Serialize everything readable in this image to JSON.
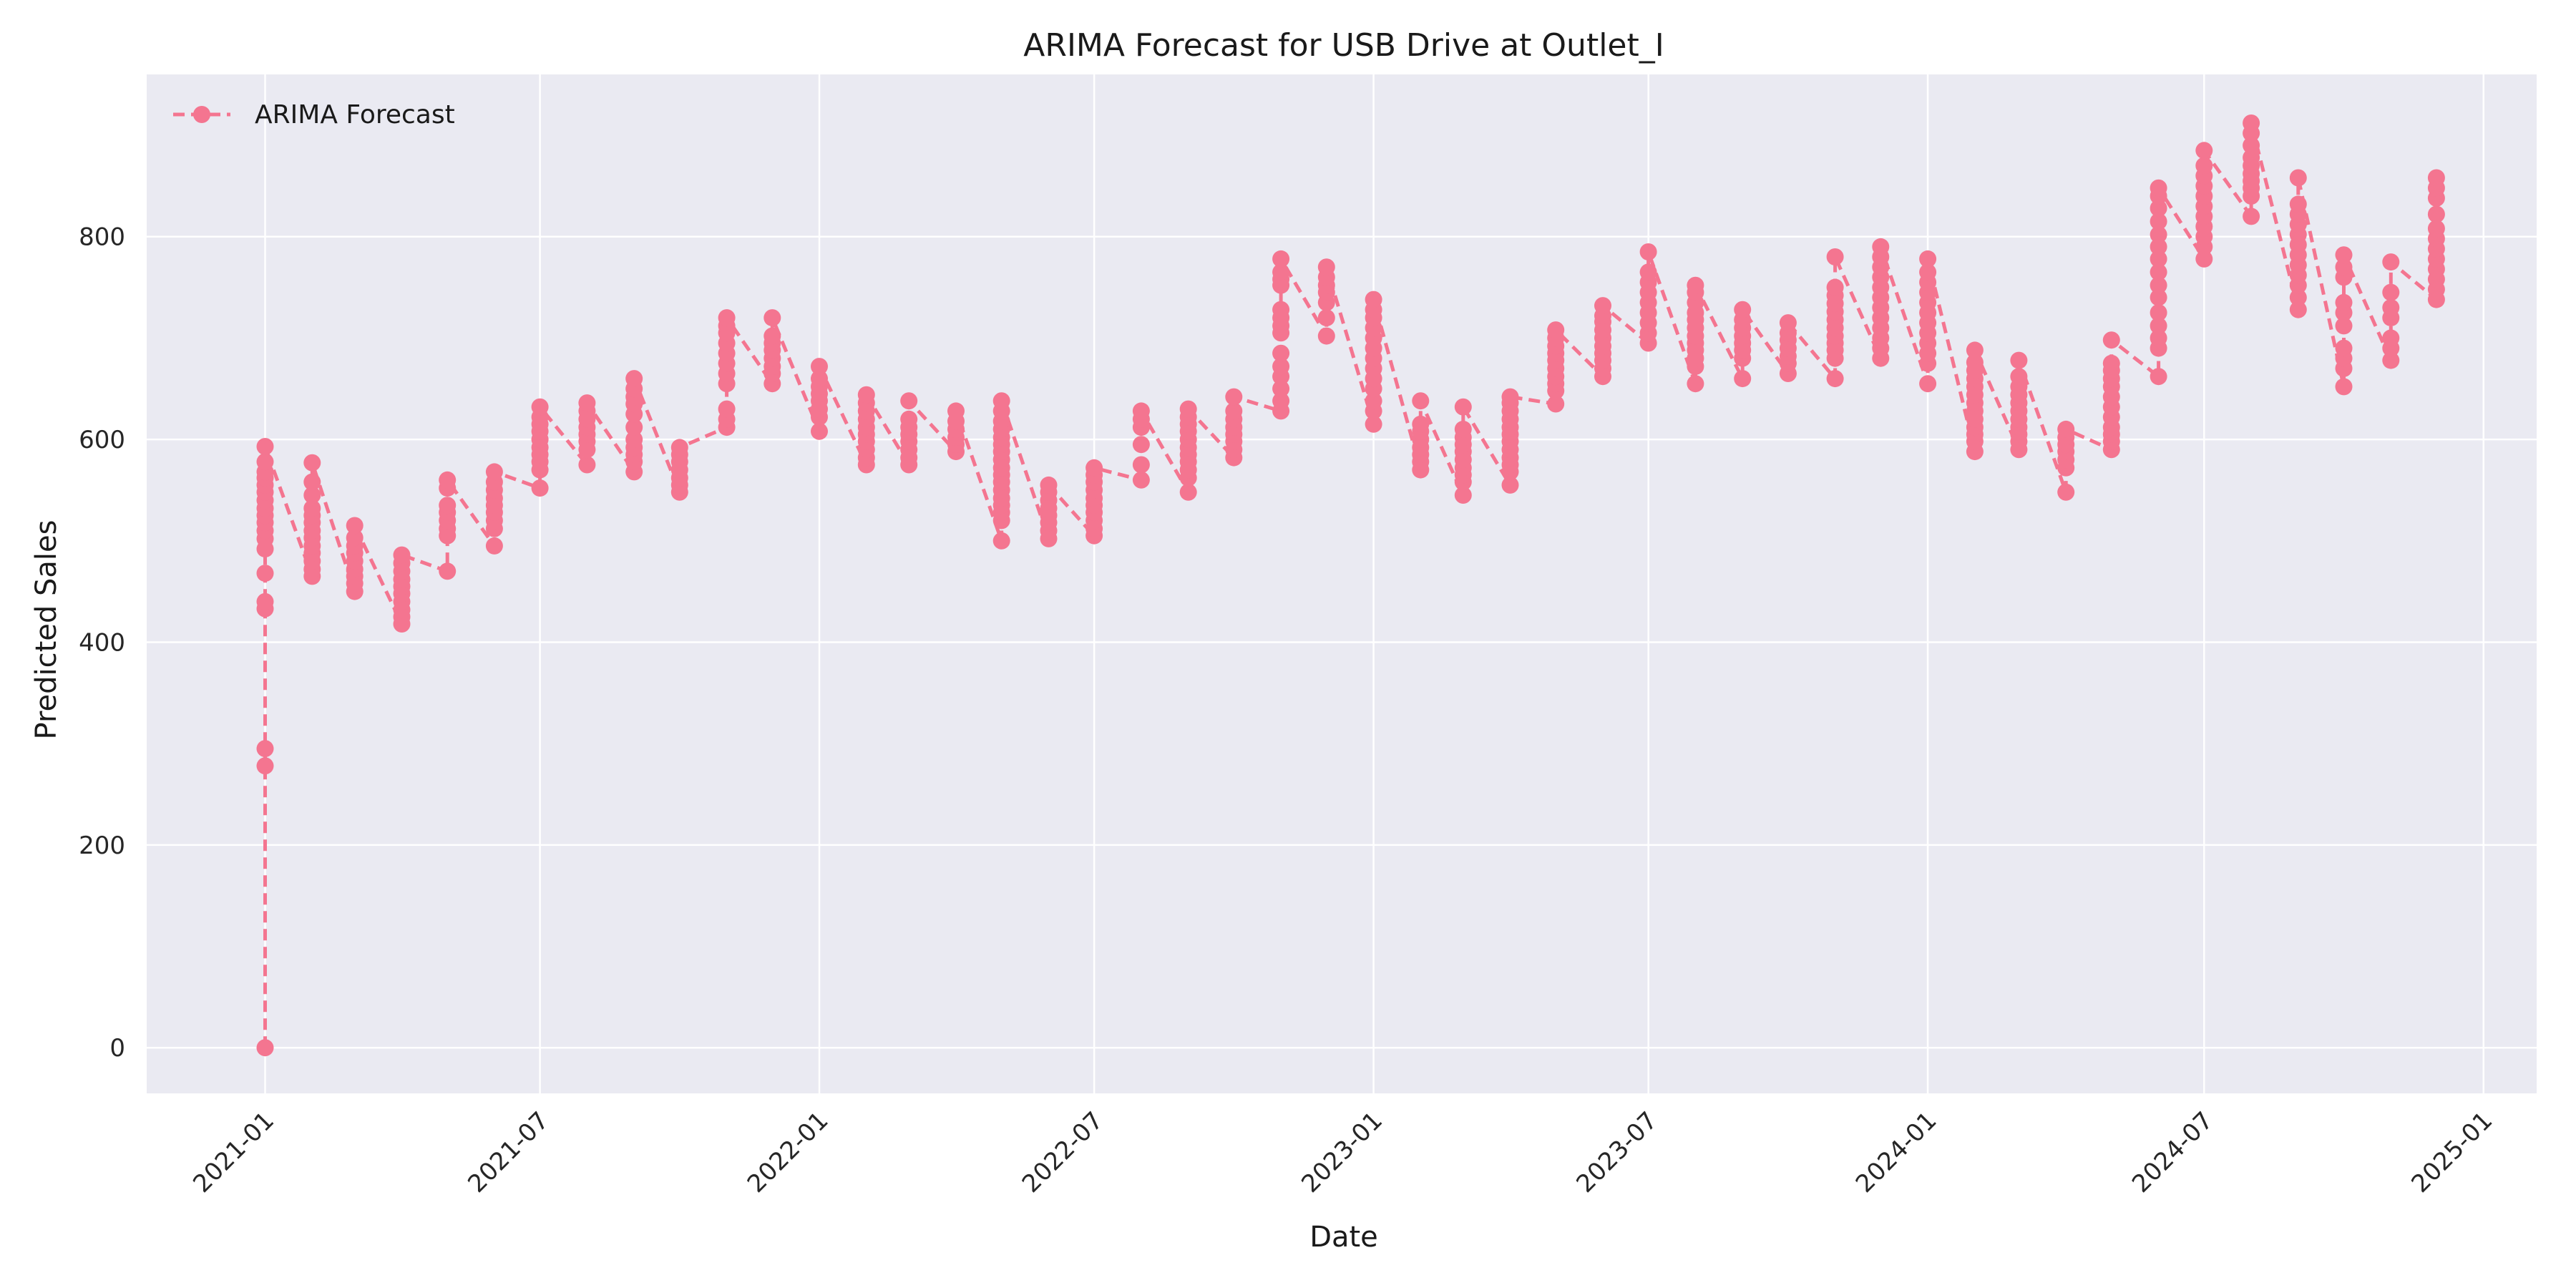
{
  "chart_data": {
    "type": "line",
    "title": "ARIMA Forecast for USB Drive at Outlet_I",
    "xlabel": "Date",
    "ylabel": "Predicted Sales",
    "x_axis_type": "date",
    "xlim": [
      "2020-10-15",
      "2025-02-05"
    ],
    "ylim": [
      -45,
      960
    ],
    "x_ticks": [
      "2021-01",
      "2021-07",
      "2022-01",
      "2022-07",
      "2023-01",
      "2023-07",
      "2024-01",
      "2024-07",
      "2025-01"
    ],
    "x_tick_rotation_deg": 45,
    "y_ticks": [
      0,
      200,
      400,
      600,
      800
    ],
    "grid": true,
    "background": "#EAEAF2",
    "grid_color": "#FFFFFF",
    "legend": {
      "position": "top-left"
    },
    "series": [
      {
        "name": "ARIMA Forecast",
        "color": "#F47590",
        "line_style": "dashed",
        "marker": "circle",
        "points": [
          {
            "x": "2021-01-01",
            "y": [
              0,
              278,
              295,
              433,
              440,
              468,
              492,
              502,
              510,
              518,
              525,
              532,
              540,
              548,
              555,
              562,
              568,
              578,
              593
            ]
          },
          {
            "x": "2021-02-01",
            "y": [
              465,
              472,
              480,
              488,
              495,
              503,
              510,
              518,
              525,
              532,
              545,
              558,
              577
            ]
          },
          {
            "x": "2021-03-01",
            "y": [
              450,
              458,
              465,
              472,
              480,
              488,
              495,
              503,
              515
            ]
          },
          {
            "x": "2021-04-01",
            "y": [
              418,
              425,
              432,
              440,
              448,
              455,
              462,
              470,
              478,
              486
            ]
          },
          {
            "x": "2021-05-01",
            "y": [
              470,
              505,
              512,
              520,
              528,
              535,
              552,
              560
            ]
          },
          {
            "x": "2021-06-01",
            "y": [
              495,
              512,
              520,
              528,
              535,
              542,
              550,
              558,
              568
            ]
          },
          {
            "x": "2021-07-01",
            "y": [
              552,
              570,
              578,
              585,
              592,
              600,
              608,
              615,
              622,
              632
            ]
          },
          {
            "x": "2021-08-01",
            "y": [
              575,
              590,
              598,
              605,
              612,
              620,
              628,
              636
            ]
          },
          {
            "x": "2021-09-01",
            "y": [
              568,
              578,
              585,
              592,
              600,
              612,
              625,
              635,
              642,
              650,
              660
            ]
          },
          {
            "x": "2021-10-01",
            "y": [
              548,
              555,
              562,
              570,
              578,
              585,
              592
            ]
          },
          {
            "x": "2021-11-01",
            "y": [
              612,
              620,
              630,
              655,
              665,
              675,
              685,
              695,
              705,
              712,
              720
            ]
          },
          {
            "x": "2021-12-01",
            "y": [
              655,
              665,
              672,
              680,
              688,
              695,
              702,
              720
            ]
          },
          {
            "x": "2022-01-01",
            "y": [
              608,
              622,
              630,
              638,
              645,
              652,
              660,
              672
            ]
          },
          {
            "x": "2022-02-01",
            "y": [
              575,
              582,
              590,
              598,
              605,
              612,
              620,
              628,
              636,
              644
            ]
          },
          {
            "x": "2022-03-01",
            "y": [
              575,
              582,
              590,
              598,
              605,
              612,
              620,
              638
            ]
          },
          {
            "x": "2022-04-01",
            "y": [
              588,
              595,
              602,
              610,
              618,
              628
            ]
          },
          {
            "x": "2022-05-01",
            "y": [
              500,
              520,
              528,
              535,
              542,
              550,
              558,
              565,
              572,
              580,
              588,
              595,
              602,
              610,
              618,
              628,
              638
            ]
          },
          {
            "x": "2022-06-01",
            "y": [
              502,
              510,
              518,
              525,
              532,
              540,
              548,
              555
            ]
          },
          {
            "x": "2022-07-01",
            "y": [
              505,
              512,
              520,
              528,
              535,
              542,
              550,
              558,
              565,
              572
            ]
          },
          {
            "x": "2022-08-01",
            "y": [
              560,
              575,
              595,
              612,
              620,
              628
            ]
          },
          {
            "x": "2022-09-01",
            "y": [
              548,
              562,
              570,
              578,
              585,
              592,
              600,
              608,
              615,
              622,
              630
            ]
          },
          {
            "x": "2022-10-01",
            "y": [
              582,
              590,
              598,
              605,
              612,
              620,
              628,
              642
            ]
          },
          {
            "x": "2022-11-01",
            "y": [
              628,
              638,
              650,
              662,
              672,
              685,
              705,
              712,
              720,
              728,
              752,
              758,
              765,
              778
            ]
          },
          {
            "x": "2022-12-01",
            "y": [
              702,
              720,
              735,
              745,
              752,
              760,
              770
            ]
          },
          {
            "x": "2023-01-01",
            "y": [
              615,
              628,
              638,
              650,
              660,
              670,
              680,
              690,
              700,
              710,
              720,
              728,
              738
            ]
          },
          {
            "x": "2023-02-01",
            "y": [
              570,
              578,
              585,
              592,
              600,
              608,
              615,
              638
            ]
          },
          {
            "x": "2023-03-01",
            "y": [
              545,
              558,
              565,
              572,
              580,
              588,
              595,
              602,
              610,
              632
            ]
          },
          {
            "x": "2023-04-01",
            "y": [
              555,
              568,
              575,
              582,
              590,
              598,
              605,
              612,
              620,
              628,
              636,
              642
            ]
          },
          {
            "x": "2023-05-01",
            "y": [
              635,
              648,
              655,
              662,
              670,
              678,
              685,
              692,
              700,
              708
            ]
          },
          {
            "x": "2023-06-01",
            "y": [
              662,
              670,
              678,
              685,
              692,
              700,
              708,
              716,
              722,
              732
            ]
          },
          {
            "x": "2023-07-01",
            "y": [
              695,
              705,
              715,
              725,
              735,
              745,
              755,
              765,
              785
            ]
          },
          {
            "x": "2023-08-01",
            "y": [
              655,
              672,
              680,
              688,
              695,
              702,
              710,
              718,
              725,
              735,
              745,
              752
            ]
          },
          {
            "x": "2023-09-01",
            "y": [
              660,
              680,
              688,
              695,
              702,
              710,
              718,
              728
            ]
          },
          {
            "x": "2023-10-01",
            "y": [
              665,
              675,
              682,
              690,
              698,
              705,
              715
            ]
          },
          {
            "x": "2023-11-01",
            "y": [
              660,
              680,
              688,
              695,
              702,
              710,
              718,
              726,
              734,
              742,
              750,
              780
            ]
          },
          {
            "x": "2023-12-01",
            "y": [
              680,
              690,
              700,
              710,
              720,
              730,
              740,
              750,
              760,
              770,
              780,
              790
            ]
          },
          {
            "x": "2024-01-01",
            "y": [
              655,
              675,
              685,
              695,
              705,
              715,
              725,
              735,
              745,
              755,
              765,
              778
            ]
          },
          {
            "x": "2024-02-01",
            "y": [
              588,
              598,
              605,
              612,
              620,
              628,
              636,
              644,
              652,
              660,
              668,
              676,
              688
            ]
          },
          {
            "x": "2024-03-01",
            "y": [
              590,
              598,
              605,
              612,
              620,
              628,
              636,
              644,
              652,
              662,
              678
            ]
          },
          {
            "x": "2024-04-01",
            "y": [
              548,
              572,
              580,
              588,
              595,
              602,
              610
            ]
          },
          {
            "x": "2024-05-01",
            "y": [
              590,
              598,
              605,
              612,
              622,
              632,
              642,
              652,
              660,
              668,
              675,
              698
            ]
          },
          {
            "x": "2024-06-01",
            "y": [
              662,
              690,
              700,
              712,
              725,
              740,
              752,
              765,
              778,
              790,
              802,
              815,
              828,
              840,
              848
            ]
          },
          {
            "x": "2024-07-01",
            "y": [
              778,
              790,
              800,
              810,
              820,
              830,
              840,
              850,
              860,
              870,
              885
            ]
          },
          {
            "x": "2024-08-01",
            "y": [
              820,
              840,
              848,
              855,
              862,
              870,
              878,
              890,
              902,
              912
            ]
          },
          {
            "x": "2024-09-01",
            "y": [
              728,
              740,
              752,
              762,
              772,
              782,
              792,
              802,
              812,
              822,
              832,
              858
            ]
          },
          {
            "x": "2024-10-01",
            "y": [
              652,
              670,
              680,
              690,
              712,
              725,
              735,
              760,
              770,
              782
            ]
          },
          {
            "x": "2024-11-01",
            "y": [
              678,
              690,
              700,
              720,
              730,
              745,
              775
            ]
          },
          {
            "x": "2024-12-01",
            "y": [
              738,
              748,
              758,
              768,
              778,
              788,
              798,
              808,
              822,
              838,
              848,
              858
            ]
          }
        ]
      }
    ]
  }
}
